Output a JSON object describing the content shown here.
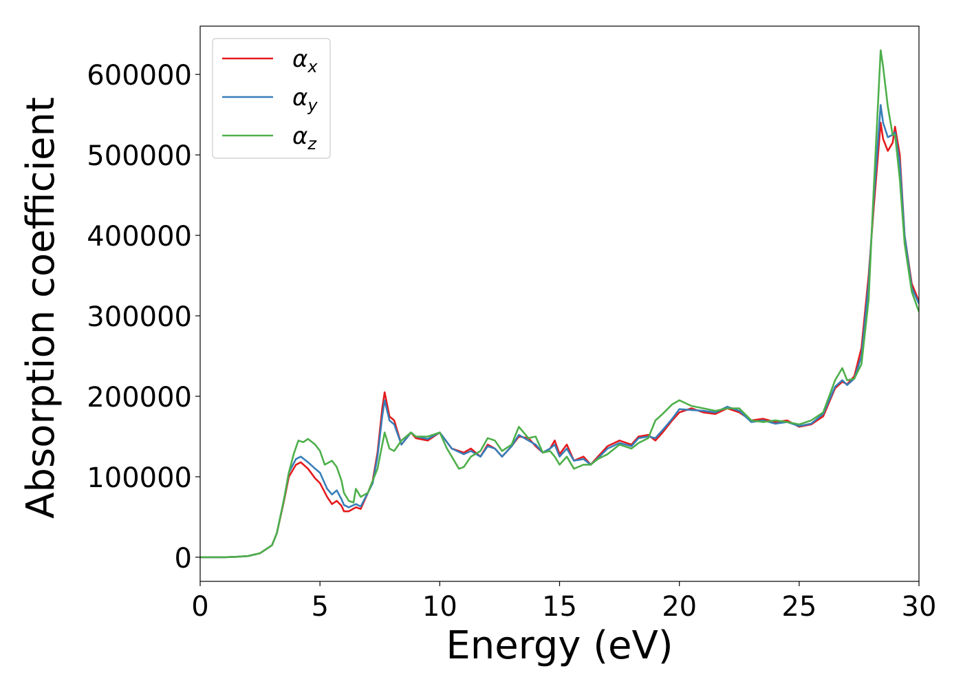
{
  "chart_data": {
    "type": "line",
    "title": "",
    "xlabel": "Energy (eV)",
    "ylabel": "Absorption coefficient",
    "xlim": [
      0,
      30
    ],
    "ylim": [
      -30000,
      660000
    ],
    "xticks": [
      0,
      5,
      10,
      15,
      20,
      25,
      30
    ],
    "yticks": [
      0,
      100000,
      200000,
      300000,
      400000,
      500000,
      600000
    ],
    "xtick_labels": [
      "0",
      "5",
      "10",
      "15",
      "20",
      "25",
      "30"
    ],
    "ytick_labels": [
      "0",
      "100000",
      "200000",
      "300000",
      "400000",
      "500000",
      "600000"
    ],
    "grid": false,
    "legend_position": "top-left",
    "series": [
      {
        "name": "α_x",
        "label_main": "α",
        "label_sub": "x",
        "color": "#e41a1c",
        "points": [
          [
            0,
            0
          ],
          [
            1,
            0
          ],
          [
            1.5,
            500
          ],
          [
            2,
            1500
          ],
          [
            2.5,
            5000
          ],
          [
            3,
            15000
          ],
          [
            3.2,
            30000
          ],
          [
            3.5,
            70000
          ],
          [
            3.7,
            100000
          ],
          [
            4,
            115000
          ],
          [
            4.2,
            118000
          ],
          [
            4.5,
            110000
          ],
          [
            4.8,
            98000
          ],
          [
            5,
            92000
          ],
          [
            5.3,
            75000
          ],
          [
            5.5,
            66000
          ],
          [
            5.7,
            70000
          ],
          [
            5.9,
            64000
          ],
          [
            6,
            57000
          ],
          [
            6.2,
            57000
          ],
          [
            6.5,
            62000
          ],
          [
            6.7,
            60000
          ],
          [
            7,
            80000
          ],
          [
            7.2,
            95000
          ],
          [
            7.4,
            130000
          ],
          [
            7.6,
            185000
          ],
          [
            7.7,
            205000
          ],
          [
            7.9,
            175000
          ],
          [
            8.1,
            170000
          ],
          [
            8.4,
            140000
          ],
          [
            8.8,
            155000
          ],
          [
            9,
            148000
          ],
          [
            9.5,
            145000
          ],
          [
            10,
            155000
          ],
          [
            10.5,
            135000
          ],
          [
            11,
            130000
          ],
          [
            11.3,
            135000
          ],
          [
            11.7,
            125000
          ],
          [
            12,
            140000
          ],
          [
            12.3,
            135000
          ],
          [
            12.6,
            125000
          ],
          [
            13,
            138000
          ],
          [
            13.3,
            150000
          ],
          [
            13.7,
            148000
          ],
          [
            14,
            138000
          ],
          [
            14.3,
            130000
          ],
          [
            14.6,
            135000
          ],
          [
            14.8,
            145000
          ],
          [
            15,
            128000
          ],
          [
            15.3,
            140000
          ],
          [
            15.6,
            120000
          ],
          [
            16,
            125000
          ],
          [
            16.3,
            115000
          ],
          [
            16.6,
            125000
          ],
          [
            17,
            138000
          ],
          [
            17.5,
            145000
          ],
          [
            18,
            140000
          ],
          [
            18.3,
            150000
          ],
          [
            18.7,
            152000
          ],
          [
            19,
            145000
          ],
          [
            19.3,
            155000
          ],
          [
            19.7,
            170000
          ],
          [
            20,
            180000
          ],
          [
            20.5,
            185000
          ],
          [
            21,
            180000
          ],
          [
            21.5,
            178000
          ],
          [
            22,
            185000
          ],
          [
            22.5,
            180000
          ],
          [
            23,
            170000
          ],
          [
            23.5,
            172000
          ],
          [
            24,
            168000
          ],
          [
            24.5,
            170000
          ],
          [
            25,
            162000
          ],
          [
            25.5,
            165000
          ],
          [
            26,
            175000
          ],
          [
            26.5,
            210000
          ],
          [
            26.8,
            218000
          ],
          [
            27,
            215000
          ],
          [
            27.3,
            225000
          ],
          [
            27.6,
            260000
          ],
          [
            27.9,
            350000
          ],
          [
            28.1,
            430000
          ],
          [
            28.4,
            540000
          ],
          [
            28.5,
            520000
          ],
          [
            28.7,
            505000
          ],
          [
            28.9,
            515000
          ],
          [
            29,
            535000
          ],
          [
            29.2,
            500000
          ],
          [
            29.4,
            400000
          ],
          [
            29.7,
            340000
          ],
          [
            30,
            318000
          ]
        ]
      },
      {
        "name": "α_y",
        "label_main": "α",
        "label_sub": "y",
        "color": "#377eb8",
        "points": [
          [
            0,
            0
          ],
          [
            1,
            0
          ],
          [
            1.5,
            500
          ],
          [
            2,
            1500
          ],
          [
            2.5,
            5000
          ],
          [
            3,
            15000
          ],
          [
            3.2,
            30000
          ],
          [
            3.5,
            72000
          ],
          [
            3.7,
            105000
          ],
          [
            4,
            122000
          ],
          [
            4.2,
            125000
          ],
          [
            4.5,
            118000
          ],
          [
            4.8,
            110000
          ],
          [
            5,
            105000
          ],
          [
            5.3,
            85000
          ],
          [
            5.5,
            78000
          ],
          [
            5.7,
            83000
          ],
          [
            5.9,
            72000
          ],
          [
            6,
            65000
          ],
          [
            6.2,
            62000
          ],
          [
            6.5,
            66000
          ],
          [
            6.7,
            63000
          ],
          [
            7,
            80000
          ],
          [
            7.2,
            92000
          ],
          [
            7.4,
            125000
          ],
          [
            7.6,
            175000
          ],
          [
            7.7,
            195000
          ],
          [
            7.9,
            170000
          ],
          [
            8.1,
            165000
          ],
          [
            8.4,
            140000
          ],
          [
            8.8,
            155000
          ],
          [
            9,
            150000
          ],
          [
            9.5,
            147000
          ],
          [
            10,
            155000
          ],
          [
            10.5,
            135000
          ],
          [
            11,
            128000
          ],
          [
            11.3,
            132000
          ],
          [
            11.7,
            125000
          ],
          [
            12,
            138000
          ],
          [
            12.3,
            135000
          ],
          [
            12.6,
            125000
          ],
          [
            13,
            138000
          ],
          [
            13.3,
            152000
          ],
          [
            13.7,
            145000
          ],
          [
            14,
            140000
          ],
          [
            14.3,
            130000
          ],
          [
            14.6,
            135000
          ],
          [
            14.8,
            140000
          ],
          [
            15,
            125000
          ],
          [
            15.3,
            135000
          ],
          [
            15.6,
            120000
          ],
          [
            16,
            122000
          ],
          [
            16.3,
            115000
          ],
          [
            16.6,
            123000
          ],
          [
            17,
            135000
          ],
          [
            17.5,
            142000
          ],
          [
            18,
            138000
          ],
          [
            18.3,
            148000
          ],
          [
            18.7,
            150000
          ],
          [
            19,
            148000
          ],
          [
            19.3,
            158000
          ],
          [
            19.7,
            172000
          ],
          [
            20,
            184000
          ],
          [
            20.5,
            183000
          ],
          [
            21,
            182000
          ],
          [
            21.5,
            180000
          ],
          [
            22,
            187000
          ],
          [
            22.5,
            182000
          ],
          [
            23,
            168000
          ],
          [
            23.5,
            170000
          ],
          [
            24,
            166000
          ],
          [
            24.5,
            168000
          ],
          [
            25,
            163000
          ],
          [
            25.5,
            166000
          ],
          [
            26,
            178000
          ],
          [
            26.5,
            212000
          ],
          [
            26.8,
            220000
          ],
          [
            27,
            214000
          ],
          [
            27.3,
            222000
          ],
          [
            27.6,
            250000
          ],
          [
            27.9,
            340000
          ],
          [
            28.1,
            440000
          ],
          [
            28.4,
            562000
          ],
          [
            28.5,
            540000
          ],
          [
            28.7,
            522000
          ],
          [
            28.9,
            525000
          ],
          [
            29,
            528000
          ],
          [
            29.2,
            490000
          ],
          [
            29.4,
            400000
          ],
          [
            29.7,
            335000
          ],
          [
            30,
            315000
          ]
        ]
      },
      {
        "name": "α_z",
        "label_main": "α",
        "label_sub": "z",
        "color": "#4daf4a",
        "points": [
          [
            0,
            0
          ],
          [
            1,
            0
          ],
          [
            1.5,
            500
          ],
          [
            2,
            1500
          ],
          [
            2.5,
            5000
          ],
          [
            3,
            15000
          ],
          [
            3.2,
            30000
          ],
          [
            3.5,
            72000
          ],
          [
            3.7,
            105000
          ],
          [
            3.9,
            128000
          ],
          [
            4.1,
            145000
          ],
          [
            4.3,
            143000
          ],
          [
            4.5,
            147000
          ],
          [
            4.8,
            140000
          ],
          [
            5,
            132000
          ],
          [
            5.2,
            115000
          ],
          [
            5.5,
            120000
          ],
          [
            5.7,
            112000
          ],
          [
            5.9,
            95000
          ],
          [
            6,
            80000
          ],
          [
            6.2,
            70000
          ],
          [
            6.4,
            68000
          ],
          [
            6.5,
            85000
          ],
          [
            6.7,
            75000
          ],
          [
            7,
            80000
          ],
          [
            7.2,
            95000
          ],
          [
            7.4,
            110000
          ],
          [
            7.6,
            140000
          ],
          [
            7.7,
            155000
          ],
          [
            7.9,
            135000
          ],
          [
            8.1,
            132000
          ],
          [
            8.4,
            145000
          ],
          [
            8.8,
            155000
          ],
          [
            9,
            150000
          ],
          [
            9.5,
            150000
          ],
          [
            10,
            155000
          ],
          [
            10.3,
            135000
          ],
          [
            10.5,
            125000
          ],
          [
            10.8,
            110000
          ],
          [
            11,
            112000
          ],
          [
            11.3,
            125000
          ],
          [
            11.7,
            132000
          ],
          [
            12,
            148000
          ],
          [
            12.3,
            145000
          ],
          [
            12.6,
            132000
          ],
          [
            13,
            140000
          ],
          [
            13.3,
            162000
          ],
          [
            13.7,
            148000
          ],
          [
            14,
            150000
          ],
          [
            14.3,
            130000
          ],
          [
            14.6,
            132000
          ],
          [
            14.8,
            125000
          ],
          [
            15,
            115000
          ],
          [
            15.3,
            125000
          ],
          [
            15.6,
            110000
          ],
          [
            16,
            115000
          ],
          [
            16.3,
            115000
          ],
          [
            16.6,
            122000
          ],
          [
            17,
            128000
          ],
          [
            17.5,
            140000
          ],
          [
            18,
            135000
          ],
          [
            18.3,
            142000
          ],
          [
            18.7,
            148000
          ],
          [
            19,
            170000
          ],
          [
            19.3,
            178000
          ],
          [
            19.7,
            190000
          ],
          [
            20,
            195000
          ],
          [
            20.5,
            188000
          ],
          [
            21,
            185000
          ],
          [
            21.5,
            182000
          ],
          [
            22,
            185000
          ],
          [
            22.5,
            185000
          ],
          [
            23,
            170000
          ],
          [
            23.5,
            168000
          ],
          [
            24,
            170000
          ],
          [
            24.5,
            168000
          ],
          [
            25,
            165000
          ],
          [
            25.5,
            170000
          ],
          [
            26,
            180000
          ],
          [
            26.5,
            220000
          ],
          [
            26.8,
            235000
          ],
          [
            27,
            220000
          ],
          [
            27.3,
            222000
          ],
          [
            27.6,
            240000
          ],
          [
            27.9,
            320000
          ],
          [
            28.1,
            450000
          ],
          [
            28.4,
            630000
          ],
          [
            28.5,
            610000
          ],
          [
            28.7,
            560000
          ],
          [
            28.9,
            525000
          ],
          [
            29,
            525000
          ],
          [
            29.2,
            470000
          ],
          [
            29.4,
            390000
          ],
          [
            29.7,
            330000
          ],
          [
            30,
            305000
          ]
        ]
      }
    ]
  }
}
